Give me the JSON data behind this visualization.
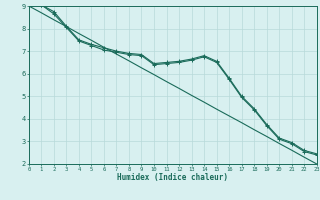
{
  "x": [
    0,
    1,
    2,
    3,
    4,
    5,
    6,
    7,
    8,
    9,
    10,
    11,
    12,
    13,
    14,
    15,
    16,
    17,
    18,
    19,
    20,
    21,
    22,
    23
  ],
  "line_upper": [
    9.0,
    9.05,
    8.75,
    8.1,
    7.5,
    7.3,
    7.15,
    7.0,
    6.9,
    6.85,
    6.45,
    6.5,
    6.55,
    6.65,
    6.8,
    6.55,
    5.8,
    5.0,
    4.45,
    3.75,
    3.15,
    2.95,
    2.6,
    2.45
  ],
  "line_mid": [
    9.0,
    9.05,
    8.65,
    8.05,
    7.45,
    7.25,
    7.05,
    6.95,
    6.85,
    6.8,
    6.4,
    6.45,
    6.5,
    6.6,
    6.75,
    6.5,
    5.75,
    4.95,
    4.4,
    3.7,
    3.1,
    2.9,
    2.55,
    2.4
  ],
  "line_diag": [
    9.0,
    8.7,
    8.39,
    8.09,
    7.78,
    7.48,
    7.17,
    6.87,
    6.57,
    6.26,
    5.96,
    5.65,
    5.35,
    5.04,
    4.74,
    4.43,
    4.13,
    3.83,
    3.52,
    3.22,
    2.91,
    2.61,
    2.3,
    2.0
  ],
  "line_color": "#1a6b5a",
  "bg_color": "#d8f0f0",
  "grid_color": "#b8dada",
  "xlabel": "Humidex (Indice chaleur)",
  "ylim": [
    2,
    9
  ],
  "xlim": [
    0,
    23
  ],
  "yticks": [
    2,
    3,
    4,
    5,
    6,
    7,
    8,
    9
  ],
  "xticks": [
    0,
    1,
    2,
    3,
    4,
    5,
    6,
    7,
    8,
    9,
    10,
    11,
    12,
    13,
    14,
    15,
    16,
    17,
    18,
    19,
    20,
    21,
    22,
    23
  ]
}
